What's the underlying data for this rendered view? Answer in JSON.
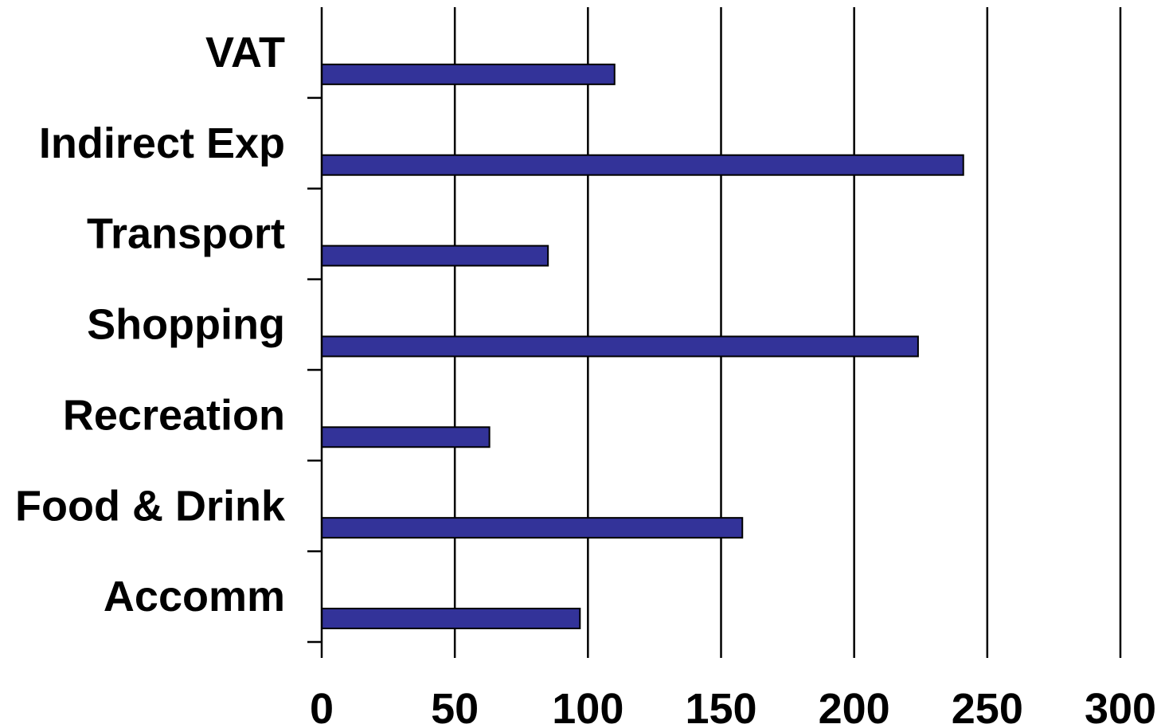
{
  "chart_data": {
    "type": "bar",
    "orientation": "horizontal",
    "categories": [
      "VAT",
      "Indirect Exp",
      "Transport",
      "Shopping",
      "Recreation",
      "Food & Drink",
      "Accomm"
    ],
    "series": [
      {
        "values": [
          110,
          241,
          85,
          224,
          63,
          158,
          97
        ]
      }
    ],
    "title": "",
    "xlabel": "",
    "ylabel": "",
    "xlim": [
      0,
      300
    ],
    "x_ticks": [
      "0",
      "50",
      "100",
      "150",
      "200",
      "250",
      "300"
    ],
    "grid": "vertical",
    "legend": "none",
    "bar_color": "#333399"
  }
}
